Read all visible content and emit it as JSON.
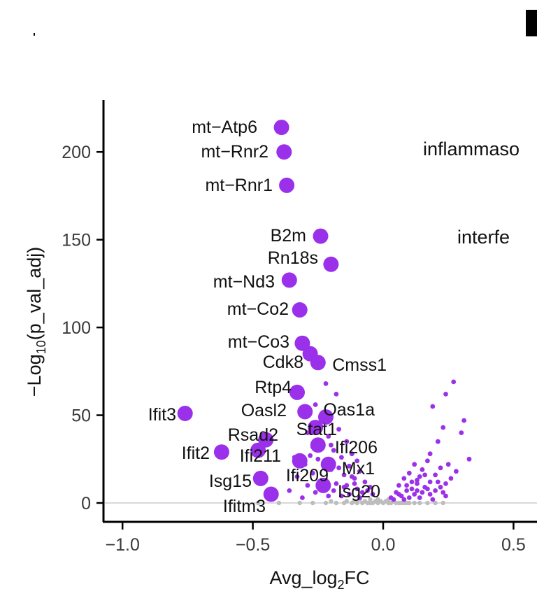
{
  "chart_data": {
    "type": "scatter",
    "xlabel": "Avg_log2FC",
    "ylabel": "-Log10(p_val_adj)",
    "xlim": [
      -1.12,
      0.72
    ],
    "ylim": [
      -8,
      230
    ],
    "x_ticks": [
      {
        "value": -1.0,
        "label": "−1.0"
      },
      {
        "value": -0.5,
        "label": "−0.5"
      },
      {
        "value": 0.0,
        "label": "0.0"
      },
      {
        "value": 0.5,
        "label": "0.5"
      }
    ],
    "y_ticks": [
      {
        "value": 0,
        "label": "0"
      },
      {
        "value": 50,
        "label": "50"
      },
      {
        "value": 100,
        "label": "100"
      },
      {
        "value": 150,
        "label": "150"
      },
      {
        "value": 200,
        "label": "200"
      }
    ],
    "grid": false,
    "colors": {
      "significant": "#9b30ea",
      "nonsignificant": "#bdbdbd",
      "baseline": "#d9d9d9",
      "axis": "#000000"
    },
    "annotations": [
      "inflammaso",
      "interfe"
    ],
    "labeled_genes": [
      {
        "name": "mt−Atp6",
        "x": -0.39,
        "y": 214
      },
      {
        "name": "mt−Rnr2",
        "x": -0.38,
        "y": 200
      },
      {
        "name": "mt−Rnr1",
        "x": -0.37,
        "y": 181
      },
      {
        "name": "B2m",
        "x": -0.24,
        "y": 152
      },
      {
        "name": "Rn18s",
        "x": -0.2,
        "y": 136
      },
      {
        "name": "mt−Nd3",
        "x": -0.36,
        "y": 127
      },
      {
        "name": "mt−Co2",
        "x": -0.32,
        "y": 110
      },
      {
        "name": "mt−Co3",
        "x": -0.31,
        "y": 91
      },
      {
        "name": "Cdk8",
        "x": -0.28,
        "y": 85
      },
      {
        "name": "Cmss1",
        "x": -0.25,
        "y": 80
      },
      {
        "name": "Rtp4",
        "x": -0.33,
        "y": 63
      },
      {
        "name": "Ifit3",
        "x": -0.76,
        "y": 51
      },
      {
        "name": "Oasl2",
        "x": -0.3,
        "y": 52
      },
      {
        "name": "Oas1a",
        "x": -0.22,
        "y": 49
      },
      {
        "name": "Stat1",
        "x": -0.26,
        "y": 43
      },
      {
        "name": "Rsad2",
        "x": -0.45,
        "y": 36
      },
      {
        "name": "Ifi206",
        "x": -0.25,
        "y": 33
      },
      {
        "name": "Ifit2",
        "x": -0.62,
        "y": 29
      },
      {
        "name": "Ifi211",
        "x": -0.48,
        "y": 30
      },
      {
        "name": "Mx1",
        "x": -0.21,
        "y": 22
      },
      {
        "name": "Ifi209",
        "x": -0.32,
        "y": 24
      },
      {
        "name": "Isg15",
        "x": -0.47,
        "y": 14
      },
      {
        "name": "Isg20",
        "x": -0.23,
        "y": 10
      },
      {
        "name": "Ifitm3",
        "x": -0.43,
        "y": 5
      }
    ],
    "small_points_significant": [
      [
        -0.22,
        68
      ],
      [
        -0.18,
        62
      ],
      [
        -0.26,
        56
      ],
      [
        -0.2,
        50
      ],
      [
        -0.24,
        44
      ],
      [
        -0.17,
        42
      ],
      [
        -0.29,
        40
      ],
      [
        -0.21,
        38
      ],
      [
        -0.14,
        35
      ],
      [
        -0.27,
        32
      ],
      [
        -0.19,
        30
      ],
      [
        -0.12,
        28
      ],
      [
        -0.16,
        26
      ],
      [
        -0.25,
        25
      ],
      [
        -0.1,
        24
      ],
      [
        -0.3,
        22
      ],
      [
        -0.13,
        21
      ],
      [
        -0.2,
        19
      ],
      [
        -0.09,
        18
      ],
      [
        -0.27,
        17
      ],
      [
        -0.15,
        16
      ],
      [
        -0.33,
        15
      ],
      [
        -0.11,
        14
      ],
      [
        -0.22,
        13
      ],
      [
        -0.07,
        12
      ],
      [
        -0.18,
        11
      ],
      [
        -0.29,
        10
      ],
      [
        -0.14,
        10
      ],
      [
        -0.05,
        9
      ],
      [
        -0.24,
        8
      ],
      [
        -0.1,
        8
      ],
      [
        -0.19,
        7
      ],
      [
        -0.36,
        7
      ],
      [
        -0.08,
        6
      ],
      [
        -0.26,
        6
      ],
      [
        -0.13,
        5
      ],
      [
        -0.04,
        5
      ],
      [
        -0.21,
        4
      ],
      [
        -0.16,
        4
      ],
      [
        -0.31,
        3
      ],
      [
        -0.09,
        3
      ],
      [
        -0.23,
        12
      ],
      [
        -0.17,
        20
      ],
      [
        -0.28,
        27
      ],
      [
        -0.12,
        15
      ],
      [
        -0.06,
        7
      ],
      [
        -0.34,
        26
      ],
      [
        -0.15,
        9
      ],
      [
        -0.2,
        33
      ],
      [
        -0.11,
        11
      ],
      [
        0.27,
        69
      ],
      [
        0.24,
        62
      ],
      [
        0.19,
        55
      ],
      [
        0.31,
        47
      ],
      [
        0.3,
        40
      ],
      [
        0.23,
        43
      ],
      [
        0.21,
        35
      ],
      [
        0.18,
        28
      ],
      [
        0.33,
        25
      ],
      [
        0.25,
        22
      ],
      [
        0.28,
        18
      ],
      [
        0.22,
        20
      ],
      [
        0.17,
        24
      ],
      [
        0.15,
        19
      ],
      [
        0.12,
        22
      ],
      [
        0.2,
        16
      ],
      [
        0.26,
        14
      ],
      [
        0.14,
        15
      ],
      [
        0.1,
        17
      ],
      [
        0.24,
        11
      ],
      [
        0.18,
        12
      ],
      [
        0.08,
        14
      ],
      [
        0.13,
        11
      ],
      [
        0.22,
        9
      ],
      [
        0.16,
        9
      ],
      [
        0.06,
        10
      ],
      [
        0.11,
        8
      ],
      [
        0.2,
        7
      ],
      [
        0.09,
        7
      ],
      [
        0.15,
        6
      ],
      [
        0.05,
        6
      ],
      [
        0.12,
        5
      ],
      [
        0.18,
        5
      ],
      [
        0.07,
        4
      ],
      [
        0.24,
        4
      ],
      [
        0.1,
        3
      ],
      [
        0.14,
        3
      ],
      [
        0.03,
        3
      ],
      [
        0.19,
        2
      ],
      [
        0.08,
        2
      ],
      [
        0.13,
        13
      ],
      [
        0.16,
        16
      ],
      [
        0.11,
        12
      ],
      [
        0.21,
        12
      ],
      [
        0.09,
        10
      ],
      [
        0.17,
        8
      ],
      [
        0.13,
        7
      ],
      [
        0.06,
        5
      ],
      [
        0.23,
        6
      ],
      [
        0.04,
        2
      ]
    ],
    "small_points_nonsignificant": [
      [
        -0.48,
        0
      ],
      [
        -0.4,
        0
      ],
      [
        -0.32,
        0
      ],
      [
        -0.27,
        0
      ],
      [
        -0.22,
        0
      ],
      [
        -0.18,
        0
      ],
      [
        -0.15,
        0
      ],
      [
        -0.12,
        0
      ],
      [
        -0.1,
        0
      ],
      [
        -0.08,
        0
      ],
      [
        -0.06,
        0
      ],
      [
        -0.05,
        0
      ],
      [
        -0.04,
        0
      ],
      [
        -0.03,
        1
      ],
      [
        -0.02,
        0
      ],
      [
        -0.01,
        1
      ],
      [
        0.0,
        0
      ],
      [
        0.01,
        1
      ],
      [
        0.02,
        0
      ],
      [
        0.03,
        0
      ],
      [
        0.04,
        1
      ],
      [
        0.05,
        0
      ],
      [
        0.06,
        0
      ],
      [
        0.07,
        0
      ],
      [
        0.08,
        0
      ],
      [
        0.09,
        0
      ],
      [
        0.1,
        0
      ],
      [
        0.12,
        0
      ],
      [
        0.14,
        0
      ],
      [
        0.17,
        0
      ],
      [
        0.2,
        0
      ],
      [
        0.23,
        0
      ],
      [
        -0.07,
        1
      ],
      [
        -0.11,
        1
      ],
      [
        -0.14,
        1
      ],
      [
        -0.09,
        2
      ],
      [
        -0.05,
        2
      ],
      [
        0.02,
        2
      ],
      [
        -0.02,
        2
      ],
      [
        -0.2,
        1
      ]
    ]
  }
}
